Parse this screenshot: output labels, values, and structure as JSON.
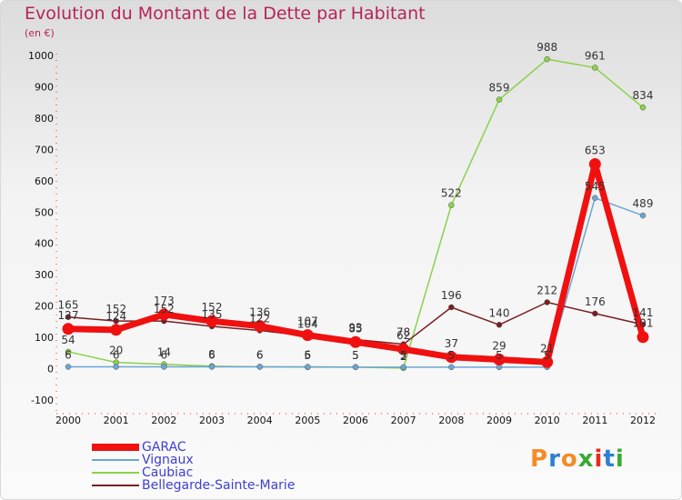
{
  "title": "Evolution du Montant de la Dette par Habitant",
  "unit": "(en €)",
  "logo": {
    "text": "Proxiti",
    "colors": [
      "#f28c28",
      "#2d7fd3",
      "#f28c28",
      "#3aa935",
      "#e52b1f",
      "#2d7fd3",
      "#3aa935"
    ]
  },
  "chart_data": {
    "type": "line",
    "x": [
      "2000",
      "2001",
      "2002",
      "2003",
      "2004",
      "2005",
      "2006",
      "2007",
      "2008",
      "2009",
      "2010",
      "2011",
      "2012"
    ],
    "ylim": [
      -100,
      1000
    ],
    "yticks": [
      "-100",
      "0",
      "100",
      "200",
      "300",
      "400",
      "500",
      "600",
      "700",
      "800",
      "900",
      "1000"
    ],
    "grid": false,
    "legend_position": "bottom-left",
    "series": [
      {
        "name": "Caubiac",
        "color": "#8bd14a",
        "values": [
          54,
          20,
          14,
          8,
          6,
          5,
          5,
          2,
          522,
          859,
          988,
          961,
          834
        ],
        "labels": [
          "54",
          "20",
          "14",
          "8",
          "6",
          "5",
          "5",
          "2",
          "522",
          "859",
          "988",
          "961",
          "834"
        ]
      },
      {
        "name": "Vignaux",
        "color": "#6aa6d6",
        "values": [
          6,
          6,
          6,
          6,
          6,
          6,
          5,
          5,
          5,
          5,
          5,
          545,
          489
        ],
        "labels": [
          "6",
          "6",
          "6",
          "6",
          "6",
          "6",
          "5",
          "5",
          "5",
          "5",
          "5",
          "545",
          "489"
        ]
      },
      {
        "name": "Bellegarde-Sainte-Marie",
        "color": "#7a1e22",
        "values": [
          165,
          152,
          152,
          135,
          122,
          104,
          93,
          78,
          196,
          140,
          212,
          176,
          141
        ],
        "labels": [
          "165",
          "152",
          "152",
          "135",
          "122",
          "104",
          "93",
          "78",
          "196",
          "140",
          "212",
          "176",
          "141"
        ]
      },
      {
        "name": "GARAC",
        "color": "#f01010",
        "values": [
          127,
          124,
          173,
          152,
          136,
          107,
          85,
          62,
          37,
          29,
          21,
          653,
          101
        ],
        "labels": [
          "127",
          "124",
          "173",
          "152",
          "136",
          "107",
          "85",
          "62",
          "37",
          "29",
          "21",
          "653",
          "101"
        ]
      }
    ]
  },
  "legend": [
    {
      "name": "GARAC",
      "color": "#f01010",
      "weight": 8
    },
    {
      "name": "Vignaux",
      "color": "#6aa6d6",
      "weight": 2
    },
    {
      "name": "Caubiac",
      "color": "#8bd14a",
      "weight": 2
    },
    {
      "name": "Bellegarde-Sainte-Marie",
      "color": "#7a1e22",
      "weight": 2
    }
  ]
}
